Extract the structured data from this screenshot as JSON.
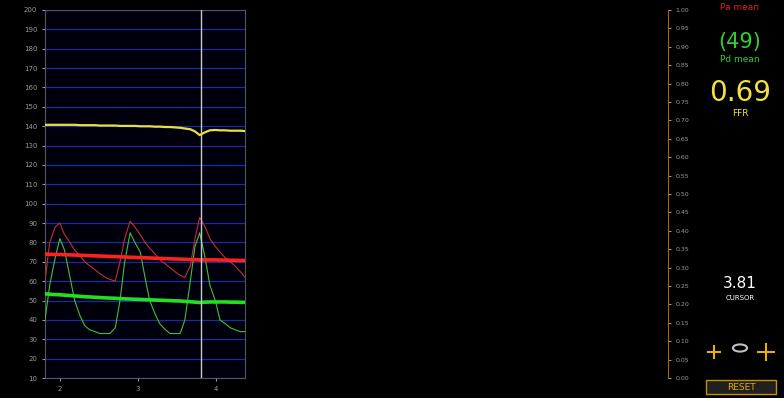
{
  "chart_data": {
    "type": "line",
    "x": [
      1.81,
      1.87,
      1.94,
      2.0,
      2.06,
      2.13,
      2.19,
      2.26,
      2.32,
      2.38,
      2.45,
      2.51,
      2.58,
      2.64,
      2.71,
      2.77,
      2.83,
      2.9,
      2.96,
      3.03,
      3.09,
      3.15,
      3.22,
      3.28,
      3.35,
      3.41,
      3.47,
      3.54,
      3.6,
      3.67,
      3.73,
      3.79,
      3.86,
      3.92,
      3.99,
      4.05,
      4.12,
      4.18,
      4.24,
      4.31,
      4.37
    ],
    "series": [
      {
        "color": "#c03030",
        "line_style": "solid",
        "values": [
          60,
          80,
          88,
          90,
          84,
          80,
          76,
          73,
          70,
          68,
          66,
          64,
          62,
          61,
          60,
          70,
          82,
          91,
          88,
          84,
          80,
          77,
          74,
          71,
          69,
          67,
          65,
          63,
          62,
          68,
          82,
          93,
          88,
          82,
          78,
          75,
          72,
          70,
          68,
          65,
          62
        ]
      },
      {
        "color": "#40c040",
        "line_style": "solid",
        "values": [
          40,
          58,
          72,
          82,
          76,
          62,
          50,
          42,
          37,
          35,
          34,
          33,
          33,
          33,
          36,
          50,
          70,
          85,
          80,
          75,
          62,
          50,
          43,
          38,
          35,
          33,
          33,
          33,
          40,
          60,
          78,
          85,
          72,
          58,
          50,
          40,
          38,
          36,
          35,
          34,
          34
        ]
      },
      {
        "color": "#ff2020",
        "line_style": "solid",
        "values": [
          74.0,
          73.9,
          73.8,
          73.8,
          73.7,
          73.6,
          73.5,
          73.4,
          73.3,
          73.2,
          73.1,
          73.0,
          72.9,
          72.8,
          72.7,
          72.6,
          72.5,
          72.4,
          72.3,
          72.2,
          72.1,
          72.0,
          71.9,
          71.8,
          71.7,
          71.6,
          71.5,
          71.4,
          71.3,
          71.2,
          71.1,
          71.0,
          71.0,
          71.0,
          71.0,
          70.9,
          70.9,
          70.8,
          70.8,
          70.7,
          70.7
        ]
      },
      {
        "color": "#20e020",
        "line_style": "solid",
        "values": [
          53.5,
          53.3,
          53.1,
          53.0,
          52.8,
          52.6,
          52.4,
          52.2,
          52.0,
          51.9,
          51.7,
          51.6,
          51.4,
          51.3,
          51.2,
          51.0,
          50.9,
          50.8,
          50.7,
          50.6,
          50.5,
          50.4,
          50.3,
          50.2,
          50.1,
          50.0,
          49.9,
          49.8,
          49.6,
          49.4,
          49.2,
          49.0,
          49.2,
          49.3,
          49.3,
          49.3,
          49.3,
          49.2,
          49.2,
          49.1,
          49.1
        ]
      },
      {
        "color": "#e8e040",
        "line_style": "solid",
        "axis": "y2",
        "values": [
          0.688,
          0.688,
          0.688,
          0.688,
          0.688,
          0.688,
          0.688,
          0.687,
          0.687,
          0.687,
          0.687,
          0.686,
          0.686,
          0.686,
          0.686,
          0.685,
          0.685,
          0.685,
          0.685,
          0.684,
          0.684,
          0.684,
          0.683,
          0.683,
          0.682,
          0.682,
          0.681,
          0.68,
          0.678,
          0.676,
          0.67,
          0.66,
          0.668,
          0.673,
          0.674,
          0.673,
          0.673,
          0.672,
          0.672,
          0.672,
          0.671
        ]
      }
    ],
    "xlim": [
      1.81,
      4.37
    ],
    "xticks": [
      2,
      3,
      4
    ],
    "ylim": [
      10,
      200
    ],
    "yticks": [
      10,
      20,
      30,
      40,
      50,
      60,
      70,
      80,
      90,
      100,
      110,
      120,
      130,
      140,
      150,
      160,
      170,
      180,
      190,
      200
    ],
    "y2lim": [
      0,
      1
    ],
    "y2ticks": [
      {
        "value": 0,
        "label": "0.00"
      },
      {
        "value": 0.05,
        "label": "0.05"
      },
      {
        "value": 0.1,
        "label": "0.10"
      },
      {
        "value": 0.15,
        "label": "0.15"
      },
      {
        "value": 0.2,
        "label": "0.20"
      },
      {
        "value": 0.25,
        "label": "0.25"
      },
      {
        "value": 0.3,
        "label": "0.30"
      },
      {
        "value": 0.35,
        "label": "0.35"
      },
      {
        "value": 0.4,
        "label": "0.40"
      },
      {
        "value": 0.45,
        "label": "0.45"
      },
      {
        "value": 0.5,
        "label": "0.50"
      },
      {
        "value": 0.55,
        "label": "0.55"
      },
      {
        "value": 0.6,
        "label": "0.60"
      },
      {
        "value": 0.65,
        "label": "0.65"
      },
      {
        "value": 0.7,
        "label": "0.70"
      },
      {
        "value": 0.75,
        "label": "0.75"
      },
      {
        "value": 0.8,
        "label": "0.80"
      },
      {
        "value": 0.85,
        "label": "0.85"
      },
      {
        "value": 0.9,
        "label": "0.90"
      },
      {
        "value": 0.95,
        "label": "0.95"
      },
      {
        "value": 1.0,
        "label": "1.00"
      }
    ],
    "grid": true,
    "cursor": {
      "value": 3.81,
      "title": "CURSOR"
    },
    "readouts": [
      {
        "label": "Pa mean",
        "color": "#e02020"
      },
      {
        "value": "(49)",
        "label": "Pd mean",
        "color": "#30d030"
      },
      {
        "value": "0.69",
        "label": "FFR",
        "color": "#f0e040"
      }
    ],
    "button": "RESET"
  }
}
